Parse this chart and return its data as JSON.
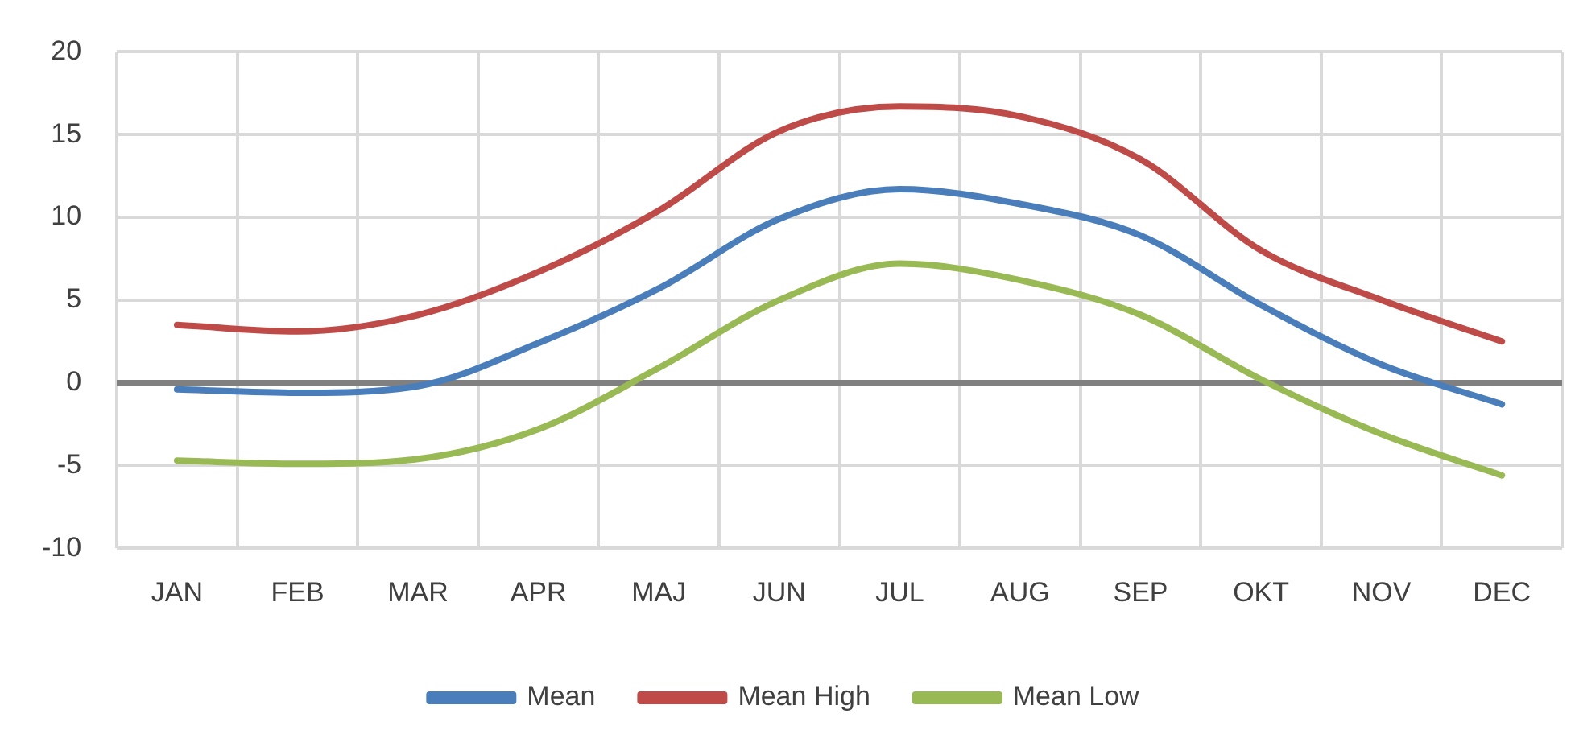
{
  "chart_data": {
    "type": "line",
    "categories": [
      "JAN",
      "FEB",
      "MAR",
      "APR",
      "MAJ",
      "JUN",
      "JUL",
      "AUG",
      "SEP",
      "OKT",
      "NOV",
      "DEC"
    ],
    "series": [
      {
        "name": "Mean",
        "color": "#4a7ebb",
        "values": [
          -0.4,
          -0.6,
          -0.2,
          2.4,
          5.7,
          9.9,
          11.7,
          10.8,
          8.9,
          4.7,
          1.1,
          -1.3
        ]
      },
      {
        "name": "Mean High",
        "color": "#be4b48",
        "values": [
          3.5,
          3.1,
          4.1,
          6.7,
          10.4,
          15.2,
          16.7,
          16.1,
          13.5,
          8.0,
          5.0,
          2.5
        ]
      },
      {
        "name": "Mean Low",
        "color": "#98b954",
        "values": [
          -4.7,
          -4.9,
          -4.6,
          -2.8,
          0.9,
          5.0,
          7.2,
          6.2,
          4.1,
          0.2,
          -3.1,
          -5.6
        ]
      }
    ],
    "ylim": [
      -10,
      20
    ],
    "yticks": [
      -10,
      -5,
      0,
      5,
      10,
      15,
      20
    ],
    "grid": true,
    "legend": "bottom",
    "marker": "none",
    "line_style": "solid"
  }
}
